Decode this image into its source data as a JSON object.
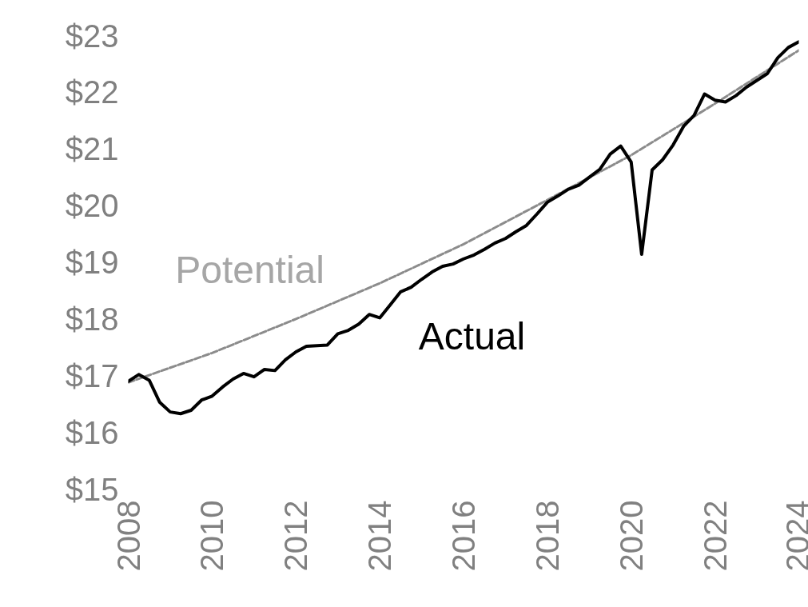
{
  "chart_data": {
    "type": "line",
    "x": [
      2008,
      2008.25,
      2008.5,
      2008.75,
      2009,
      2009.25,
      2009.5,
      2009.75,
      2010,
      2010.25,
      2010.5,
      2010.75,
      2011,
      2011.25,
      2011.5,
      2011.75,
      2012,
      2012.25,
      2012.5,
      2012.75,
      2013,
      2013.25,
      2013.5,
      2013.75,
      2014,
      2014.25,
      2014.5,
      2014.75,
      2015,
      2015.25,
      2015.5,
      2015.75,
      2016,
      2016.25,
      2016.5,
      2016.75,
      2017,
      2017.25,
      2017.5,
      2017.75,
      2018,
      2018.25,
      2018.5,
      2018.75,
      2019,
      2019.25,
      2019.5,
      2019.75,
      2020,
      2020.25,
      2020.5,
      2020.75,
      2021,
      2021.25,
      2021.5,
      2021.75,
      2022,
      2022.25,
      2022.5,
      2022.75,
      2023,
      2023.25,
      2023.5,
      2023.75,
      2024
    ],
    "series": [
      {
        "name": "Potential",
        "color": "#8c8c8c",
        "line_style": "dashed",
        "x": [
          2008,
          2010,
          2012,
          2014,
          2016,
          2018,
          2020,
          2022,
          2024
        ],
        "values": [
          16.88,
          17.4,
          18.0,
          18.63,
          19.32,
          20.1,
          20.89,
          21.8,
          22.74
        ]
      },
      {
        "name": "Actual",
        "color": "#000000",
        "line_style": "solid",
        "values": [
          16.9,
          17.02,
          16.92,
          16.53,
          16.36,
          16.33,
          16.39,
          16.57,
          16.64,
          16.8,
          16.94,
          17.04,
          16.98,
          17.11,
          17.09,
          17.28,
          17.42,
          17.52,
          17.53,
          17.54,
          17.74,
          17.8,
          17.91,
          18.08,
          18.02,
          18.25,
          18.48,
          18.56,
          18.7,
          18.83,
          18.93,
          18.97,
          19.06,
          19.13,
          19.23,
          19.34,
          19.42,
          19.54,
          19.65,
          19.85,
          20.06,
          20.17,
          20.29,
          20.36,
          20.5,
          20.64,
          20.91,
          21.05,
          20.77,
          19.14,
          20.63,
          20.81,
          21.07,
          21.4,
          21.59,
          21.97,
          21.86,
          21.83,
          21.94,
          22.09,
          22.21,
          22.33,
          22.61,
          22.79,
          22.89
        ]
      }
    ],
    "xlim": [
      2008,
      2024
    ],
    "xticks": [
      2008,
      2010,
      2012,
      2014,
      2016,
      2018,
      2020,
      2022,
      2024
    ],
    "ylim": [
      15,
      23
    ],
    "yticks": [
      {
        "value": 15,
        "label": "$15"
      },
      {
        "value": 16,
        "label": "$16"
      },
      {
        "value": 17,
        "label": "$17"
      },
      {
        "value": 18,
        "label": "$18"
      },
      {
        "value": 19,
        "label": "$19"
      },
      {
        "value": 20,
        "label": "$20"
      },
      {
        "value": 21,
        "label": "$21"
      },
      {
        "value": 22,
        "label": "$22"
      },
      {
        "value": 23,
        "label": "$23"
      }
    ],
    "grid": false,
    "marker": "none"
  }
}
